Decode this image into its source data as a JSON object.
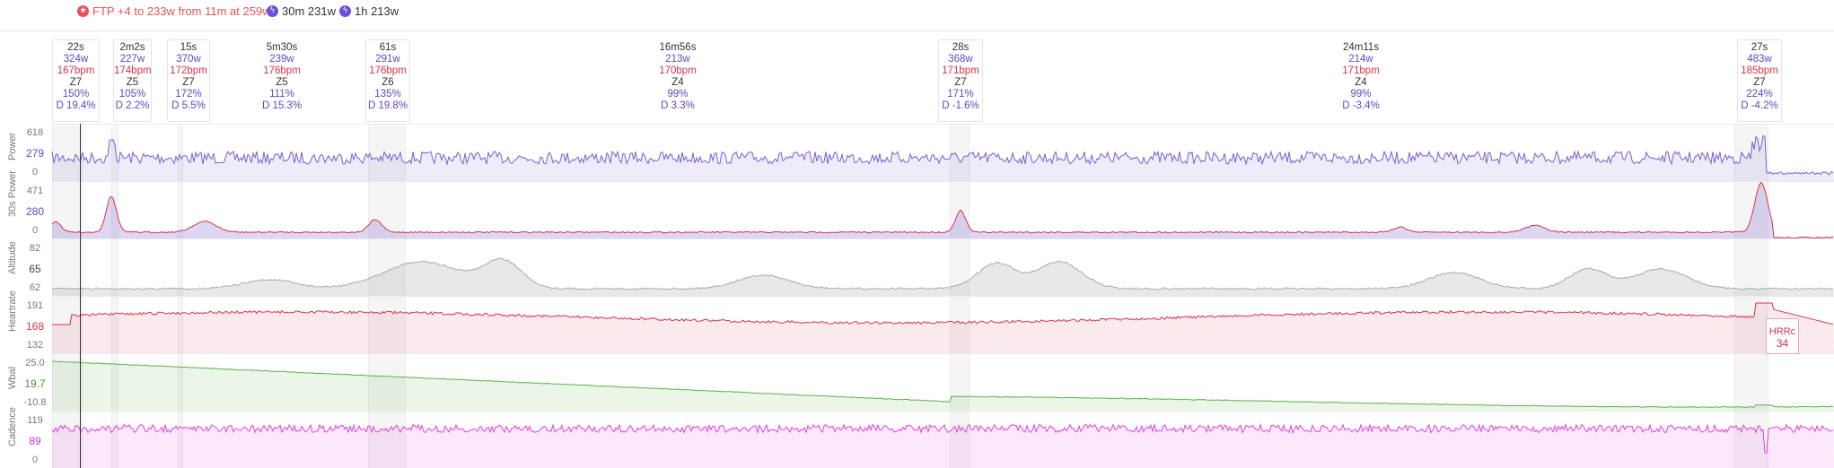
{
  "badges": {
    "ftp": "FTP +4 to 233w from 11m at 259w",
    "best_30m": "30m 231w",
    "best_1h": "1h 213w"
  },
  "intervals": [
    {
      "duration": "22s",
      "watts": "324w",
      "hr": "167bpm",
      "zone": "Z7",
      "pct": "150%",
      "drift": "D 19.4%"
    },
    {
      "duration": "2m2s",
      "watts": "227w",
      "hr": "174bpm",
      "zone": "Z5",
      "pct": "105%",
      "drift": "D 2.2%"
    },
    {
      "duration": "15s",
      "watts": "370w",
      "hr": "172bpm",
      "zone": "Z7",
      "pct": "172%",
      "drift": "D 5.5%"
    },
    {
      "duration": "5m30s",
      "watts": "239w",
      "hr": "176bpm",
      "zone": "Z5",
      "pct": "111%",
      "drift": "D 15.3%"
    },
    {
      "duration": "61s",
      "watts": "291w",
      "hr": "176bpm",
      "zone": "Z6",
      "pct": "135%",
      "drift": "D 19.8%"
    },
    {
      "duration": "16m56s",
      "watts": "213w",
      "hr": "170bpm",
      "zone": "Z4",
      "pct": "99%",
      "drift": "D 3.3%"
    },
    {
      "duration": "28s",
      "watts": "368w",
      "hr": "171bpm",
      "zone": "Z7",
      "pct": "171%",
      "drift": "D -1.6%"
    },
    {
      "duration": "24m11s",
      "watts": "214w",
      "hr": "171bpm",
      "zone": "Z4",
      "pct": "99%",
      "drift": "D -3.4%"
    },
    {
      "duration": "27s",
      "watts": "483w",
      "hr": "185bpm",
      "zone": "Z7",
      "pct": "224%",
      "drift": "D -4.2%"
    }
  ],
  "panels": {
    "power": {
      "label": "Power",
      "max": "618",
      "mid": "279",
      "min": "0"
    },
    "power30": {
      "label": "30s Power",
      "max": "471",
      "mid": "280",
      "min": "0"
    },
    "altitude": {
      "label": "Altitude",
      "max": "82",
      "mid": "65",
      "min": "62"
    },
    "heartrate": {
      "label": "Heartrate",
      "max": "191",
      "mid": "168",
      "min": "132"
    },
    "wbal": {
      "label": "Wbal",
      "max": "25.0",
      "mid": "19.7",
      "min": "-10.8"
    },
    "cadence": {
      "label": "Cadence",
      "max": "119",
      "mid": "89",
      "min": "0"
    }
  },
  "hrrc": {
    "label": "HRRc",
    "value": "34"
  },
  "colors": {
    "power": "#7a5fd0",
    "heartrate": "#d6334a",
    "wbal": "#59b347",
    "cadence": "#e040e0",
    "altitude": "#aaaaaa",
    "accent": "#e8505b"
  }
}
